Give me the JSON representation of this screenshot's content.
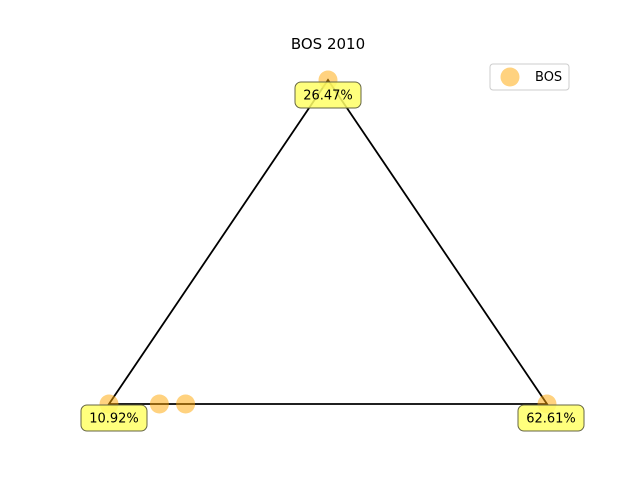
{
  "chart_data": {
    "type": "scatter",
    "title": "BOS 2010",
    "legend": {
      "placement": "top-right",
      "entries": [
        "BOS"
      ]
    },
    "marker_color": "#FFA500",
    "label_box_color": "#FFFF66",
    "triangle": {
      "vertices": [
        "top",
        "bottom-right",
        "bottom-left"
      ],
      "vertex_labels": {
        "top": "26.47%",
        "bottom-right": "62.61%",
        "bottom-left": "10.92%"
      }
    },
    "series": [
      {
        "name": "BOS",
        "points": [
          {
            "a": 1.0,
            "b": 0.0,
            "c": 0.0
          },
          {
            "a": 0.0,
            "b": 1.0,
            "c": 0.0
          },
          {
            "a": 0.0,
            "b": 0.0,
            "c": 1.0
          },
          {
            "a": 0.0,
            "b": 0.115,
            "c": 0.885
          },
          {
            "a": 0.0,
            "b": 0.175,
            "c": 0.825
          }
        ]
      }
    ]
  }
}
